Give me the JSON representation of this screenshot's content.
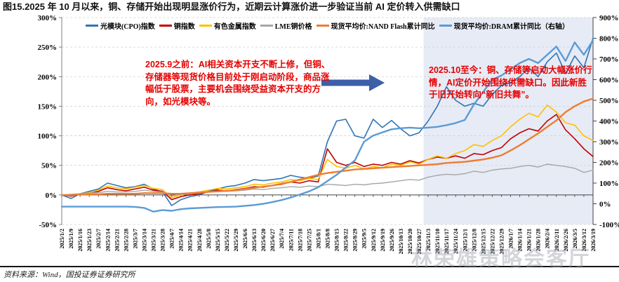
{
  "figure": {
    "title": "图15.2025 年 10 月以来，铜、存储开始出现明显涨价行为，近期云计算涨价进一步验证当前 AI 定价转入供需缺口",
    "source_note": "资料来源：Wind，国投证券证券研究所",
    "watermark": "林荣雄策略会客厅"
  },
  "annotations": {
    "left_box": "2025.9之前：AI相关资本开支不断上修，但铜、存储器等现货价格目前处于刚启动阶段，商品涨幅低于股票，主要机会围绕受益资本开支的方向，如光模块等。",
    "right_box": "2025.10至今：铜、存储等启动大幅涨价行情，AI定价开始围绕供需缺口。因此新胜于旧开始转向“新旧共舞”。",
    "arrow_color": "#3D5FA8"
  },
  "chart_data": {
    "type": "line",
    "title": "",
    "legend_position": "top",
    "grid": "dashed-horizontal",
    "left_axis": {
      "min": -50,
      "max": 300,
      "step": 50,
      "format": "percent"
    },
    "right_axis": {
      "min": -100,
      "max": 900,
      "step": 100,
      "format": "percent"
    },
    "highlight_region": {
      "start": "2025/11/3",
      "end": "2026/3/19",
      "color": "#E7EBF5"
    },
    "x": [
      "2025/1/2",
      "2025/1/9",
      "2025/1/16",
      "2025/1/23",
      "2025/2/7",
      "2025/2/14",
      "2025/2/21",
      "2025/2/28",
      "2025/3/7",
      "2025/3/14",
      "2025/3/21",
      "2025/3/28",
      "2025/4/7",
      "2025/4/14",
      "2025/4/21",
      "2025/4/28",
      "2025/5/8",
      "2025/5/15",
      "2025/5/22",
      "2025/5/29",
      "2025/6/6",
      "2025/6/13",
      "2025/6/20",
      "2025/6/27",
      "2025/7/4",
      "2025/7/11",
      "2025/7/18",
      "2025/7/25",
      "2025/8/1",
      "2025/8/8",
      "2025/8/15",
      "2025/8/22",
      "2025/8/29",
      "2025/9/5",
      "2025/9/12",
      "2025/9/19",
      "2025/9/26",
      "2025/10/13",
      "2025/10/20",
      "2025/10/27",
      "2025/11/3",
      "2025/11/10",
      "2025/11/17",
      "2025/11/24",
      "2025/12/1",
      "2025/12/8",
      "2025/12/15",
      "2025/12/22",
      "2025/12/29",
      "2026/1/7",
      "2026/1/14",
      "2026/1/21",
      "2026/1/28",
      "2026/2/4",
      "2026/2/11",
      "2026/2/26",
      "2026/3/5",
      "2026/3/12",
      "2026/3/19"
    ],
    "series": [
      {
        "name": "光模块(CPO)指数",
        "axis": "left",
        "color": "#2E75B6",
        "values": [
          0,
          -6,
          2,
          6,
          10,
          20,
          16,
          12,
          14,
          18,
          10,
          5,
          -18,
          -8,
          -3,
          0,
          6,
          10,
          14,
          16,
          20,
          26,
          24,
          26,
          28,
          33,
          30,
          28,
          32,
          90,
          125,
          128,
          100,
          96,
          128,
          114,
          126,
          112,
          100,
          105,
          125,
          150,
          183,
          160,
          150,
          155,
          150,
          170,
          185,
          190,
          200,
          215,
          200,
          225,
          240,
          205,
          235,
          215,
          265
        ]
      },
      {
        "name": "铜指数",
        "axis": "left",
        "color": "#C00000",
        "values": [
          0,
          -2,
          1,
          3,
          6,
          12,
          9,
          7,
          10,
          13,
          8,
          6,
          -8,
          -3,
          0,
          2,
          5,
          8,
          7,
          9,
          11,
          14,
          13,
          16,
          18,
          22,
          20,
          24,
          22,
          78,
          55,
          50,
          55,
          48,
          52,
          50,
          55,
          52,
          58,
          54,
          60,
          64,
          62,
          66,
          62,
          70,
          68,
          75,
          80,
          95,
          105,
          112,
          108,
          125,
          136,
          110,
          95,
          78,
          65
        ]
      },
      {
        "name": "有色金属指数",
        "axis": "left",
        "color": "#FFC000",
        "values": [
          0,
          -1,
          2,
          4,
          8,
          15,
          12,
          10,
          13,
          16,
          11,
          9,
          -5,
          0,
          3,
          5,
          8,
          11,
          10,
          12,
          14,
          18,
          17,
          20,
          22,
          26,
          24,
          28,
          26,
          60,
          48,
          45,
          50,
          44,
          48,
          46,
          52,
          50,
          56,
          52,
          60,
          66,
          62,
          70,
          75,
          85,
          82,
          92,
          100,
          115,
          128,
          138,
          132,
          152,
          140,
          122,
          118,
          100,
          92
        ]
      },
      {
        "name": "LME铜价格",
        "axis": "left",
        "color": "#A6A6A6",
        "values": [
          0,
          1,
          2,
          3,
          4,
          6,
          5,
          5,
          6,
          8,
          6,
          5,
          -2,
          1,
          2,
          3,
          5,
          6,
          6,
          7,
          8,
          10,
          9,
          11,
          12,
          14,
          13,
          15,
          14,
          18,
          17,
          16,
          18,
          17,
          19,
          20,
          22,
          24,
          26,
          25,
          30,
          33,
          35,
          34,
          36,
          40,
          38,
          42,
          44,
          45,
          48,
          50,
          47,
          52,
          50,
          48,
          45,
          38,
          42
        ]
      },
      {
        "name": "现货平均价:NAND Flash累计同比",
        "axis": "left",
        "color": "#ED7D31",
        "values": [
          0,
          0,
          1,
          1,
          1,
          2,
          2,
          2,
          2,
          3,
          3,
          3,
          2,
          2,
          3,
          4,
          5,
          6,
          7,
          8,
          10,
          12,
          14,
          16,
          19,
          22,
          26,
          30,
          34,
          37,
          39,
          41,
          43,
          44,
          45,
          46,
          47,
          48,
          49,
          50,
          51,
          52,
          54,
          55,
          56,
          58,
          60,
          63,
          67,
          75,
          84,
          94,
          104,
          115,
          126,
          140,
          150,
          158,
          163
        ]
      },
      {
        "name": "现货平均价:DRAM累计同比（右轴）",
        "axis": "right",
        "color": "#5B9BD5",
        "values": [
          -14,
          -14,
          -14,
          -14,
          -14,
          -14,
          -14,
          -14,
          -15,
          -20,
          -38,
          -30,
          -34,
          -26,
          -22,
          -20,
          -18,
          -16,
          -15,
          -14,
          -10,
          -6,
          0,
          8,
          18,
          30,
          45,
          60,
          80,
          110,
          140,
          175,
          210,
          300,
          330,
          345,
          360,
          365,
          368,
          365,
          368,
          372,
          380,
          390,
          405,
          480,
          540,
          600,
          620,
          650,
          680,
          700,
          680,
          720,
          760,
          690,
          780,
          720,
          790
        ]
      }
    ]
  }
}
